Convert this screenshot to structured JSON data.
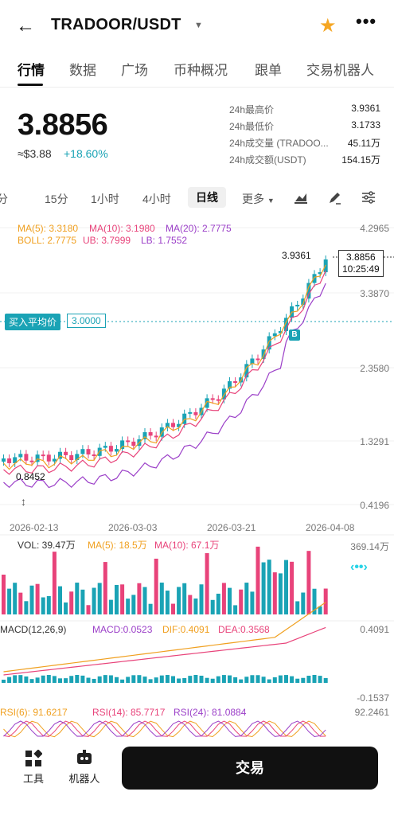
{
  "header": {
    "back_icon": "arrow-left-icon",
    "pair": "TRADOOR/USDT",
    "dropdown_icon": "caret-down-icon",
    "favorite_icon": "star-icon",
    "more_icon": "ellipsis-icon"
  },
  "tabs": [
    "行情",
    "数据",
    "广场",
    "币种概况",
    "跟单",
    "交易机器人"
  ],
  "price": {
    "last": "3.8856",
    "fiat": "≈$3.88",
    "change": "+18.60%"
  },
  "stats": [
    {
      "label": "24h最高价",
      "value": "3.9361"
    },
    {
      "label": "24h最低价",
      "value": "3.1733"
    },
    {
      "label": "24h成交量 (TRADOO...",
      "value": "45.11万"
    },
    {
      "label": "24h成交额(USDT)",
      "value": "154.15万"
    }
  ],
  "intervals": [
    "分",
    "15分",
    "1小时",
    "4小时",
    "日线",
    "更多"
  ],
  "interval_active": "日线",
  "main_indicators": {
    "ma5": "MA(5): 3.3180",
    "ma10": "MA(10): 3.1980",
    "ma20": "MA(20): 2.7775",
    "boll": "BOLL: 2.7775",
    "ub": "UB: 3.7999",
    "lb": "LB: 1.7552"
  },
  "price_axis": [
    "4.2965",
    "3.3870",
    "2.3580",
    "1.3291",
    "0.4196"
  ],
  "dates": [
    "2026-02-13",
    "2026-03-03",
    "2026-03-21",
    "2026-04-08"
  ],
  "avg_buy": {
    "label": "买入平均价",
    "value": "3.0000"
  },
  "current_box": {
    "price": "3.8856",
    "time": "10:25:49"
  },
  "high_label": "3.9361",
  "low_label": "0.8452",
  "buy_marker": "B",
  "volume": {
    "vol": "VOL: 39.47万",
    "ma5": "MA(5): 18.5万",
    "ma10": "MA(10): 67.1万",
    "axis_top": "369.14万"
  },
  "macd": {
    "title": "MACD(12,26,9)",
    "macd": "MACD:0.0523",
    "dif": "DIF:0.4091",
    "dea": "DEA:0.3568",
    "axis_top": "0.4091",
    "axis_bottom": "-0.1537"
  },
  "rsi": {
    "rsi6": "RSI(6): 91.6217",
    "rsi14": "RSI(14): 85.7717",
    "rsi24": "RSI(24): 81.0884",
    "axis_top": "92.2461"
  },
  "bottom": {
    "tools": "工具",
    "robot": "机器人",
    "trade": "交易"
  },
  "colors": {
    "up": "#1aa3b5",
    "down": "#e8437a",
    "ma5": "#f0a020",
    "ma10": "#e8437a",
    "ma20": "#9b3fc8"
  }
}
